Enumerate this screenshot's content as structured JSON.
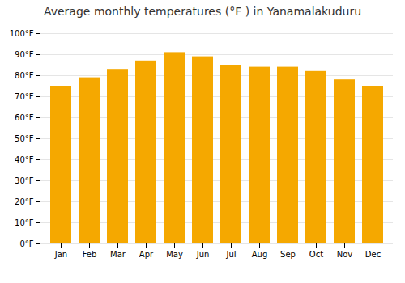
{
  "chart_data": {
    "type": "bar",
    "title": "Average monthly temperatures (°F ) in Yanamalakuduru",
    "categories": [
      "Jan",
      "Feb",
      "Mar",
      "Apr",
      "May",
      "Jun",
      "Jul",
      "Aug",
      "Sep",
      "Oct",
      "Nov",
      "Dec"
    ],
    "values": [
      75,
      79,
      83,
      87,
      91,
      89,
      85,
      84,
      84,
      82,
      78,
      75
    ],
    "color": "#F5A800",
    "ylim": [
      0,
      100
    ],
    "yticks": [
      {
        "value": 0,
        "label": "0°F"
      },
      {
        "value": 10,
        "label": "10°F"
      },
      {
        "value": 20,
        "label": "20°F"
      },
      {
        "value": 30,
        "label": "30°F"
      },
      {
        "value": 40,
        "label": "40°F"
      },
      {
        "value": 50,
        "label": "50°F"
      },
      {
        "value": 60,
        "label": "60°F"
      },
      {
        "value": 70,
        "label": "70°F"
      },
      {
        "value": 80,
        "label": "80°F"
      },
      {
        "value": 90,
        "label": "90°F"
      },
      {
        "value": 100,
        "label": "100°F"
      }
    ],
    "grid": true
  }
}
